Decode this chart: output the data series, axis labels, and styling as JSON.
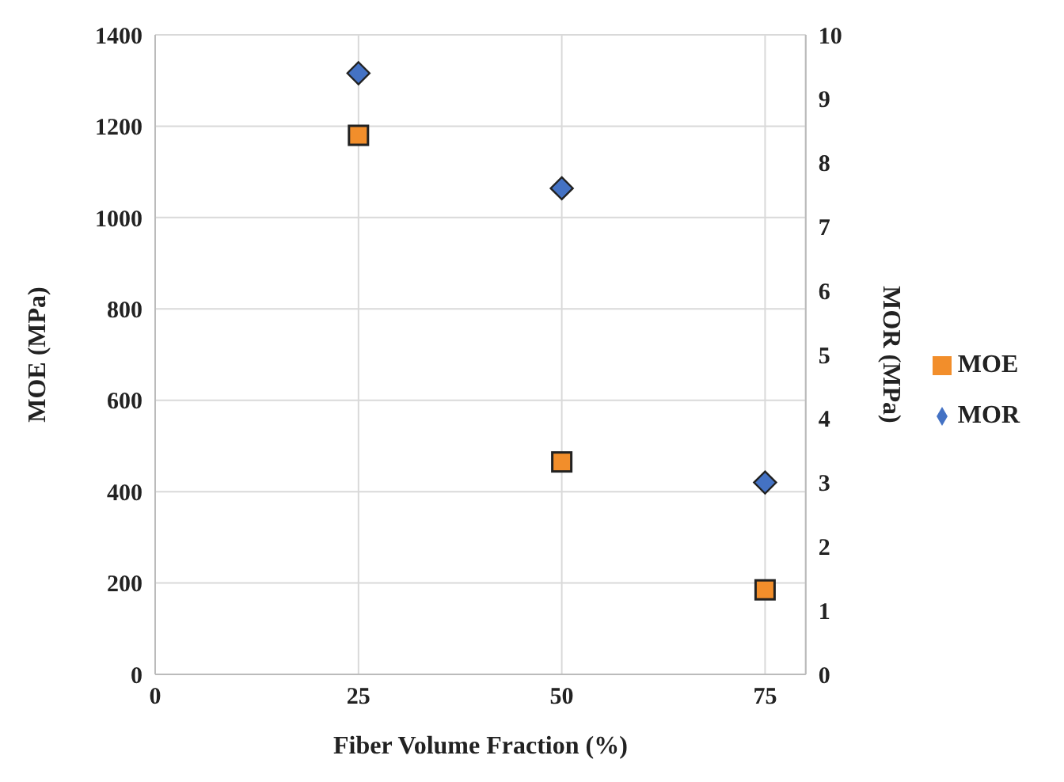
{
  "chart_data": {
    "type": "scatter",
    "xlabel": "Fiber Volume Fraction (%)",
    "ylabel": "MOE (MPa)",
    "y2label": "MOR (MPa)",
    "xlim": [
      0,
      80
    ],
    "xticks": [
      0,
      25,
      50,
      75
    ],
    "ylim": [
      0,
      1400
    ],
    "yticks": [
      0,
      200,
      400,
      600,
      800,
      1000,
      1200,
      1400
    ],
    "y2lim": [
      0,
      10
    ],
    "y2ticks": [
      0,
      1,
      2,
      3,
      4,
      5,
      6,
      7,
      8,
      9,
      10
    ],
    "x": [
      25,
      50,
      75
    ],
    "series": [
      {
        "name": "MOE",
        "color": "#f28e2b",
        "marker": "square",
        "values": [
          1180,
          465,
          185
        ]
      },
      {
        "name": "MOR",
        "color": "#4472c4",
        "marker": "diamond",
        "axis": "y2",
        "values": [
          9.4,
          7.6,
          3.0
        ]
      }
    ],
    "grid": true,
    "legend": "right"
  }
}
